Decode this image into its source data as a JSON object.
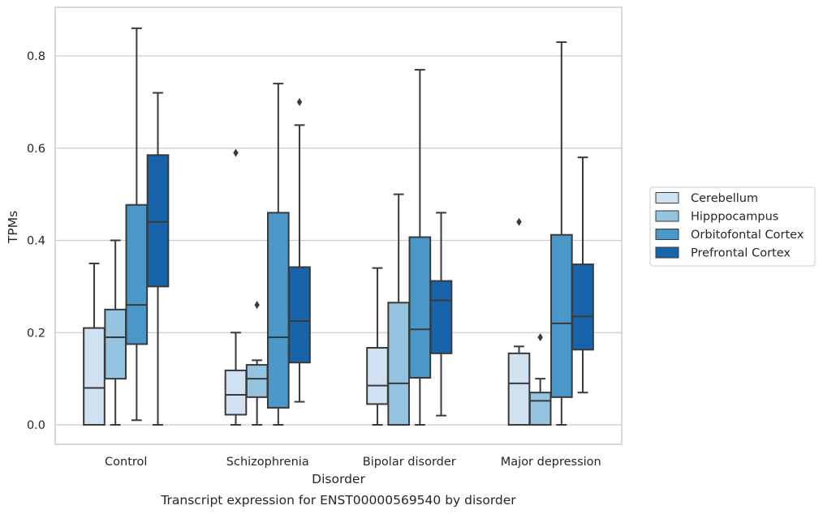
{
  "chart_data": {
    "type": "box",
    "xlabel": "Disorder",
    "ylabel": "TPMs",
    "caption": "Transcript expression for ENST00000569540 by disorder",
    "ylim": [
      -0.042,
      0.9
    ],
    "yticks": [
      0.0,
      0.2,
      0.4,
      0.6,
      0.8
    ],
    "ytick_labels": [
      "0.0",
      "0.2",
      "0.4",
      "0.6",
      "0.8"
    ],
    "grid": "horizontal",
    "legend_position": "right",
    "categories": [
      "Control",
      "Schizophrenia",
      "Bipolar disorder",
      "Major depression"
    ],
    "series": [
      {
        "name": "Cerebellum",
        "color": "#d0e1f2",
        "boxes": [
          {
            "min": 0.0,
            "q1": 0.0,
            "median": 0.08,
            "q3": 0.21,
            "max": 0.35,
            "outliers": []
          },
          {
            "min": 0.0,
            "q1": 0.022,
            "median": 0.065,
            "q3": 0.118,
            "max": 0.2,
            "outliers": [
              0.59
            ]
          },
          {
            "min": 0.0,
            "q1": 0.045,
            "median": 0.085,
            "q3": 0.167,
            "max": 0.34,
            "outliers": []
          },
          {
            "min": 0.0,
            "q1": 0.0,
            "median": 0.09,
            "q3": 0.155,
            "max": 0.17,
            "outliers": [
              0.44
            ]
          }
        ]
      },
      {
        "name": "Hipppocampus",
        "color": "#94c4df",
        "boxes": [
          {
            "min": 0.0,
            "q1": 0.1,
            "median": 0.19,
            "q3": 0.25,
            "max": 0.4,
            "outliers": []
          },
          {
            "min": 0.0,
            "q1": 0.06,
            "median": 0.1,
            "q3": 0.13,
            "max": 0.14,
            "outliers": [
              0.26
            ]
          },
          {
            "min": 0.0,
            "q1": 0.0,
            "median": 0.09,
            "q3": 0.265,
            "max": 0.5,
            "outliers": []
          },
          {
            "min": 0.0,
            "q1": 0.0,
            "median": 0.052,
            "q3": 0.07,
            "max": 0.1,
            "outliers": [
              0.19
            ]
          }
        ]
      },
      {
        "name": "Orbitofontal Cortex",
        "color": "#4a98c9",
        "boxes": [
          {
            "min": 0.01,
            "q1": 0.175,
            "median": 0.26,
            "q3": 0.477,
            "max": 0.86,
            "outliers": []
          },
          {
            "min": 0.0,
            "q1": 0.037,
            "median": 0.19,
            "q3": 0.46,
            "max": 0.74,
            "outliers": []
          },
          {
            "min": 0.0,
            "q1": 0.102,
            "median": 0.207,
            "q3": 0.407,
            "max": 0.77,
            "outliers": []
          },
          {
            "min": 0.0,
            "q1": 0.06,
            "median": 0.22,
            "q3": 0.412,
            "max": 0.83,
            "outliers": []
          }
        ]
      },
      {
        "name": "Prefrontal Cortex",
        "color": "#1764ab",
        "boxes": [
          {
            "min": 0.0,
            "q1": 0.3,
            "median": 0.44,
            "q3": 0.585,
            "max": 0.72,
            "outliers": []
          },
          {
            "min": 0.05,
            "q1": 0.135,
            "median": 0.225,
            "q3": 0.342,
            "max": 0.65,
            "outliers": [
              0.7
            ]
          },
          {
            "min": 0.02,
            "q1": 0.155,
            "median": 0.27,
            "q3": 0.312,
            "max": 0.46,
            "outliers": []
          },
          {
            "min": 0.07,
            "q1": 0.163,
            "median": 0.235,
            "q3": 0.348,
            "max": 0.58,
            "outliers": []
          }
        ]
      }
    ]
  }
}
